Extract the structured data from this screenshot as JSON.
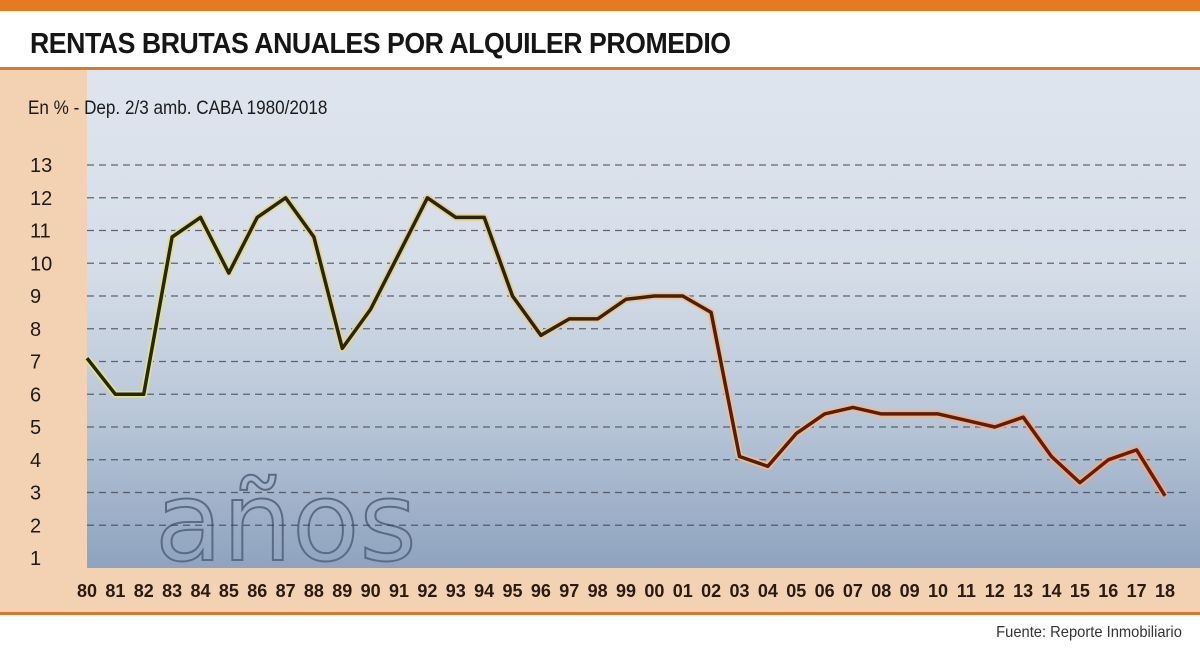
{
  "header": {
    "title": "RENTAS BRUTAS ANUALES POR ALQUILER PROMEDIO",
    "subtitle": "En % - Dep. 2/3 amb. CABA 1980/2018"
  },
  "footer": {
    "source": "Fuente: Reporte Inmobiliario"
  },
  "decoration": {
    "photo_text": "años"
  },
  "colors": {
    "accent": "#e57a1f",
    "band": "#f3d2b3",
    "line_early": "#1f2a12",
    "line_late": "#5a1a10"
  },
  "chart_data": {
    "type": "line",
    "title": "RENTAS BRUTAS ANUALES POR ALQUILER PROMEDIO",
    "subtitle": "En % - Dep. 2/3 amb. CABA 1980/2018",
    "categories": [
      "80",
      "81",
      "82",
      "83",
      "84",
      "85",
      "86",
      "87",
      "88",
      "89",
      "90",
      "91",
      "92",
      "93",
      "94",
      "95",
      "96",
      "97",
      "98",
      "99",
      "00",
      "01",
      "02",
      "03",
      "04",
      "05",
      "06",
      "07",
      "08",
      "09",
      "10",
      "11",
      "12",
      "13",
      "14",
      "15",
      "16",
      "17",
      "18"
    ],
    "values": [
      7.1,
      6.0,
      6.0,
      10.8,
      11.4,
      9.7,
      11.4,
      12.0,
      10.8,
      7.4,
      8.6,
      10.3,
      12.0,
      11.4,
      11.4,
      9.0,
      7.8,
      8.3,
      8.3,
      8.9,
      9.0,
      9.0,
      8.5,
      4.1,
      3.8,
      4.8,
      5.4,
      5.6,
      5.4,
      5.4,
      5.4,
      5.2,
      5.0,
      5.3,
      4.1,
      3.3,
      4.0,
      4.3,
      2.9
    ],
    "yticks": [
      1,
      2,
      3,
      4,
      5,
      6,
      7,
      8,
      9,
      10,
      11,
      12,
      13
    ],
    "ylim": [
      1,
      13
    ],
    "grid": "horizontal dashed",
    "legend": "none"
  }
}
